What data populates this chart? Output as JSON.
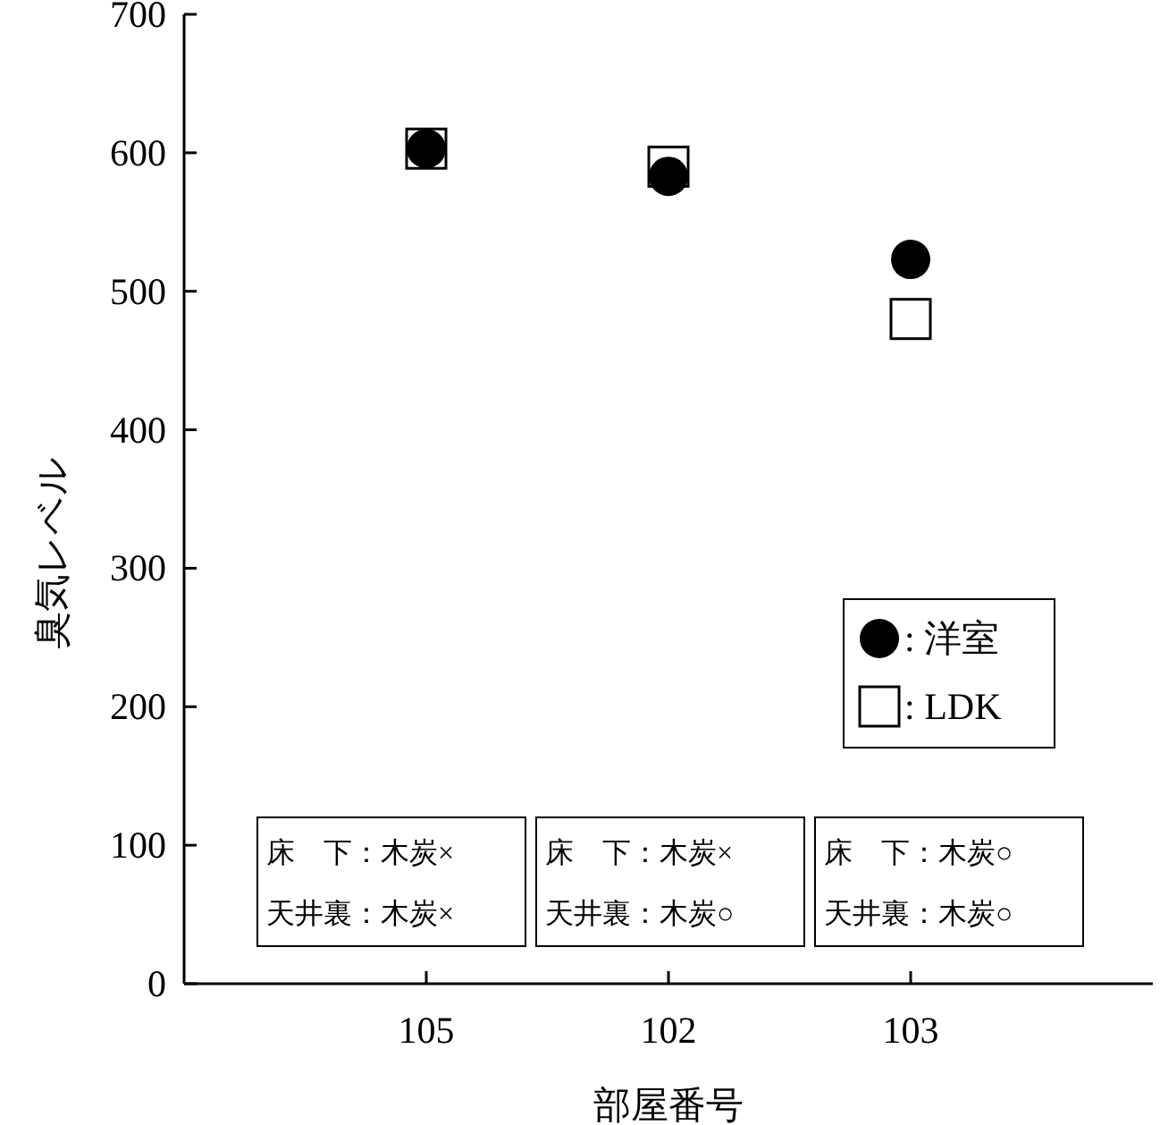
{
  "chart_data": {
    "type": "scatter",
    "xlabel": "部屋番号",
    "ylabel": "臭気レベル",
    "categories": [
      "105",
      "102",
      "103"
    ],
    "series": [
      {
        "name": ": 洋室",
        "color": "#000000",
        "marker": "circle",
        "values": [
          603,
          583,
          523
        ]
      },
      {
        "name": ": LDK",
        "color": "#000000",
        "marker": "square",
        "values": [
          603,
          590,
          480
        ]
      }
    ],
    "ylim": [
      0,
      700
    ],
    "yticks": [
      0,
      100,
      200,
      300,
      400,
      500,
      600,
      700
    ],
    "legend": "bottom right",
    "grid": false,
    "annotations": [
      "床　下：木炭×",
      "天井裏：木炭×",
      "床　下：木炭×",
      "天井裏：木炭○",
      "床　下：木炭○",
      "天井裏：木炭○"
    ]
  }
}
